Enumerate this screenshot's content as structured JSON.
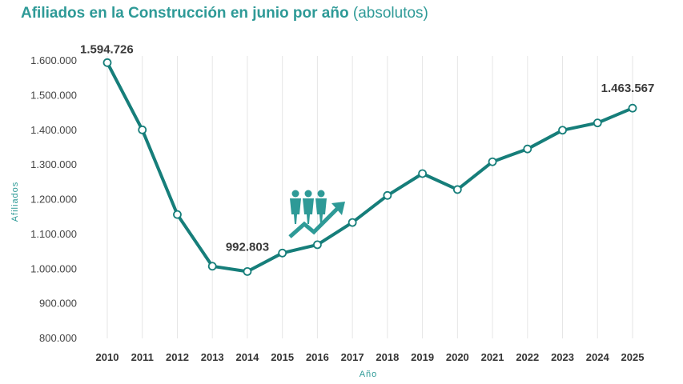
{
  "chart_data": {
    "type": "line",
    "title": "Afiliados en la Construcción en junio por año",
    "subtitle": "(absolutos)",
    "xlabel": "Año",
    "ylabel": "Afiliados",
    "ylim": [
      800000,
      1600000
    ],
    "yticks": [
      800000,
      900000,
      1000000,
      1100000,
      1200000,
      1300000,
      1400000,
      1500000,
      1600000
    ],
    "ytick_labels": [
      "800.000",
      "900.000",
      "1.000.000",
      "1.100.000",
      "1.200.000",
      "1.300.000",
      "1.400.000",
      "1.500.000",
      "1.600.000"
    ],
    "x": [
      "2010",
      "2011",
      "2012",
      "2013",
      "2014",
      "2015",
      "2016",
      "2017",
      "2018",
      "2019",
      "2020",
      "2021",
      "2022",
      "2023",
      "2024",
      "2025"
    ],
    "values": [
      1594726,
      1401000,
      1157000,
      1008000,
      992803,
      1046000,
      1070000,
      1134000,
      1212000,
      1275000,
      1229000,
      1309000,
      1346000,
      1400000,
      1421000,
      1463567
    ],
    "data_labels": [
      {
        "index": 0,
        "text": "1.594.726"
      },
      {
        "index": 4,
        "text": "992.803"
      },
      {
        "index": 15,
        "text": "1.463.567"
      }
    ],
    "grid": "vertical",
    "colors": {
      "line": "#167e7a",
      "accent": "#2e9a97",
      "grid": "#e6e6e6"
    },
    "icon": "workers-growth-icon"
  }
}
